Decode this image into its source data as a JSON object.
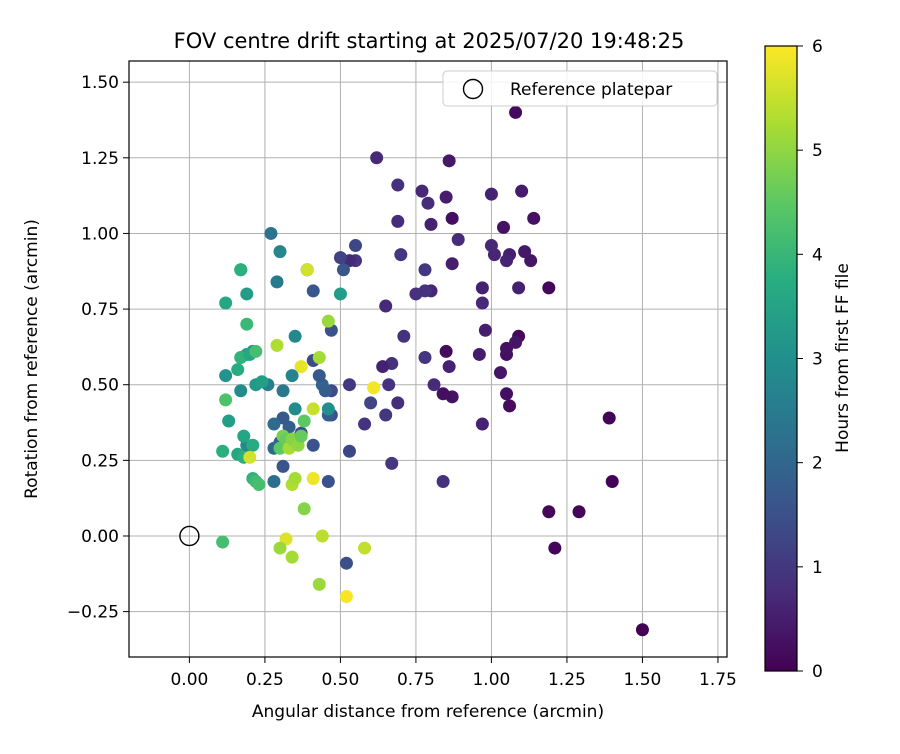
{
  "chart_data": {
    "type": "scatter",
    "title": "FOV centre drift starting at 2025/07/20 19:48:25",
    "xlabel": "Angular distance from reference (arcmin)",
    "ylabel": "Rotation from reference (arcmin)",
    "xlim": [
      -0.2,
      1.78
    ],
    "ylim": [
      -0.4,
      1.57
    ],
    "xticks": [
      "0.00",
      "0.25",
      "0.50",
      "0.75",
      "1.00",
      "1.25",
      "1.50",
      "1.75"
    ],
    "yticks": [
      "−0.25",
      "0.00",
      "0.25",
      "0.50",
      "0.75",
      "1.00",
      "1.25",
      "1.50"
    ],
    "grid": true,
    "colormap": "viridis",
    "colorbar": {
      "label": "Hours from first FF file",
      "range": [
        0,
        6
      ],
      "ticks": [
        "0",
        "1",
        "2",
        "3",
        "4",
        "5",
        "6"
      ]
    },
    "reference": {
      "label": "Reference platepar",
      "x": 0.0,
      "y": 0.0
    },
    "legend_placement": "upper right",
    "points": [
      [
        1.5,
        -0.31,
        0.02
      ],
      [
        1.4,
        0.18,
        0.03
      ],
      [
        1.39,
        0.39,
        0.05
      ],
      [
        1.29,
        0.08,
        0.06
      ],
      [
        1.21,
        -0.04,
        0.08
      ],
      [
        1.19,
        0.08,
        0.1
      ],
      [
        1.19,
        0.82,
        0.12
      ],
      [
        1.09,
        0.66,
        0.14
      ],
      [
        1.08,
        1.4,
        0.15
      ],
      [
        1.06,
        0.43,
        0.2
      ],
      [
        1.05,
        0.47,
        0.25
      ],
      [
        1.05,
        0.6,
        0.25
      ],
      [
        1.05,
        0.62,
        0.3
      ],
      [
        1.08,
        0.64,
        0.35
      ],
      [
        1.14,
        1.05,
        0.28
      ],
      [
        1.13,
        0.91,
        0.35
      ],
      [
        1.11,
        0.94,
        0.4
      ],
      [
        1.1,
        1.14,
        0.45
      ],
      [
        1.09,
        0.82,
        0.55
      ],
      [
        1.06,
        0.93,
        0.5
      ],
      [
        1.05,
        0.91,
        0.6
      ],
      [
        1.04,
        1.02,
        0.3
      ],
      [
        1.03,
        0.54,
        0.35
      ],
      [
        1.01,
        0.93,
        0.65
      ],
      [
        1.0,
        0.96,
        0.7
      ],
      [
        1.0,
        1.13,
        0.6
      ],
      [
        0.98,
        0.68,
        0.5
      ],
      [
        0.97,
        0.37,
        0.6
      ],
      [
        0.96,
        0.6,
        0.45
      ],
      [
        0.97,
        0.82,
        0.55
      ],
      [
        0.97,
        0.77,
        0.7
      ],
      [
        0.89,
        0.98,
        0.75
      ],
      [
        0.86,
        1.24,
        0.4
      ],
      [
        0.87,
        1.05,
        0.25
      ],
      [
        0.87,
        0.9,
        0.5
      ],
      [
        0.87,
        0.46,
        0.3
      ],
      [
        0.85,
        0.61,
        0.2
      ],
      [
        0.84,
        0.47,
        0.25
      ],
      [
        0.85,
        1.12,
        0.5
      ],
      [
        0.86,
        0.56,
        0.6
      ],
      [
        0.84,
        0.18,
        0.85
      ],
      [
        0.81,
        0.5,
        0.75
      ],
      [
        0.8,
        1.03,
        0.55
      ],
      [
        0.8,
        0.81,
        0.65
      ],
      [
        0.77,
        1.14,
        0.7
      ],
      [
        0.78,
        0.81,
        0.9
      ],
      [
        0.78,
        0.88,
        1.0
      ],
      [
        0.79,
        1.1,
        0.8
      ],
      [
        0.78,
        0.59,
        0.95
      ],
      [
        0.75,
        0.8,
        0.85
      ],
      [
        0.71,
        0.66,
        0.9
      ],
      [
        0.7,
        0.93,
        0.95
      ],
      [
        0.69,
        1.04,
        0.75
      ],
      [
        0.69,
        1.16,
        0.85
      ],
      [
        0.69,
        0.44,
        0.8
      ],
      [
        0.67,
        0.24,
        0.95
      ],
      [
        0.67,
        0.57,
        0.85
      ],
      [
        0.66,
        0.5,
        0.9
      ],
      [
        0.65,
        0.76,
        0.7
      ],
      [
        0.64,
        0.56,
        0.6
      ],
      [
        0.65,
        0.4,
        0.95
      ],
      [
        0.62,
        1.25,
        0.7
      ],
      [
        0.58,
        0.37,
        0.9
      ],
      [
        0.55,
        0.96,
        1.3
      ],
      [
        0.55,
        0.91,
        0.95
      ],
      [
        0.53,
        0.91,
        0.7
      ],
      [
        0.53,
        0.5,
        1.0
      ],
      [
        0.53,
        0.28,
        1.3
      ],
      [
        0.52,
        -0.09,
        1.45
      ],
      [
        0.51,
        0.88,
        1.6
      ],
      [
        0.5,
        0.92,
        1.2
      ],
      [
        0.6,
        0.44,
        1.25
      ],
      [
        0.47,
        0.68,
        1.5
      ],
      [
        0.47,
        0.48,
        1.4
      ],
      [
        0.47,
        0.4,
        1.5
      ],
      [
        0.46,
        0.4,
        1.75
      ],
      [
        0.46,
        0.18,
        1.5
      ],
      [
        0.45,
        0.48,
        1.8
      ],
      [
        0.44,
        0.5,
        1.9
      ],
      [
        0.43,
        0.53,
        1.7
      ],
      [
        0.41,
        0.58,
        1.4
      ],
      [
        0.41,
        0.3,
        1.55
      ],
      [
        0.41,
        0.81,
        1.65
      ],
      [
        0.39,
        0.88,
        1.5
      ],
      [
        0.37,
        0.34,
        1.5
      ],
      [
        0.35,
        0.32,
        1.6
      ],
      [
        0.33,
        0.36,
        1.8
      ],
      [
        0.31,
        0.39,
        1.7
      ],
      [
        0.31,
        0.23,
        1.6
      ],
      [
        0.3,
        0.31,
        1.9
      ],
      [
        0.28,
        0.37,
        2.1
      ],
      [
        0.28,
        0.18,
        2.2
      ],
      [
        0.28,
        0.29,
        2.0
      ],
      [
        0.27,
        1.0,
        2.3
      ],
      [
        0.26,
        0.5,
        2.6
      ],
      [
        0.29,
        0.84,
        2.5
      ],
      [
        0.31,
        0.48,
        2.4
      ],
      [
        0.3,
        0.94,
        2.75
      ],
      [
        0.34,
        0.53,
        2.7
      ],
      [
        0.35,
        0.66,
        2.8
      ],
      [
        0.35,
        0.42,
        2.9
      ],
      [
        0.46,
        0.42,
        2.95
      ],
      [
        0.5,
        0.8,
        3.3
      ],
      [
        0.19,
        0.8,
        3.3
      ],
      [
        0.17,
        0.88,
        3.5
      ],
      [
        0.17,
        0.88,
        3.8
      ],
      [
        0.17,
        0.48,
        2.9
      ],
      [
        0.19,
        0.3,
        2.8
      ],
      [
        0.21,
        0.61,
        3.0
      ],
      [
        0.19,
        0.6,
        3.3
      ],
      [
        0.22,
        0.5,
        3.2
      ],
      [
        0.24,
        0.51,
        3.4
      ],
      [
        0.12,
        0.53,
        3.1
      ],
      [
        0.13,
        0.38,
        3.35
      ],
      [
        0.18,
        0.33,
        3.55
      ],
      [
        0.16,
        0.27,
        3.6
      ],
      [
        0.18,
        0.26,
        3.8
      ],
      [
        0.21,
        0.3,
        3.7
      ],
      [
        0.21,
        0.19,
        3.9
      ],
      [
        0.22,
        0.18,
        4.1
      ],
      [
        0.23,
        0.17,
        4.2
      ],
      [
        0.17,
        0.59,
        3.9
      ],
      [
        0.16,
        0.55,
        3.7
      ],
      [
        0.2,
        0.6,
        3.6
      ],
      [
        0.19,
        0.7,
        4.05
      ],
      [
        0.22,
        0.61,
        4.2
      ],
      [
        0.12,
        0.77,
        3.6
      ],
      [
        0.11,
        0.28,
        3.8
      ],
      [
        0.12,
        0.45,
        4.3
      ],
      [
        0.11,
        -0.02,
        4.2
      ],
      [
        0.2,
        0.26,
        5.6
      ],
      [
        0.29,
        0.63,
        5.3
      ],
      [
        0.3,
        0.29,
        4.5
      ],
      [
        0.31,
        0.33,
        4.8
      ],
      [
        0.32,
        0.32,
        4.6
      ],
      [
        0.32,
        -0.01,
        5.7
      ],
      [
        0.3,
        -0.04,
        5.1
      ],
      [
        0.33,
        0.29,
        5.2
      ],
      [
        0.34,
        0.32,
        4.9
      ],
      [
        0.34,
        -0.07,
        5.2
      ],
      [
        0.34,
        0.17,
        5.3
      ],
      [
        0.35,
        0.19,
        5.2
      ],
      [
        0.36,
        0.3,
        5.0
      ],
      [
        0.37,
        0.33,
        4.6
      ],
      [
        0.37,
        0.56,
        5.8
      ],
      [
        0.38,
        0.38,
        4.5
      ],
      [
        0.38,
        0.09,
        4.9
      ],
      [
        0.39,
        0.88,
        5.6
      ],
      [
        0.41,
        0.42,
        5.5
      ],
      [
        0.41,
        0.19,
        5.85
      ],
      [
        0.43,
        0.59,
        5.2
      ],
      [
        0.43,
        -0.16,
        5.1
      ],
      [
        0.44,
        0.0,
        5.4
      ],
      [
        0.46,
        0.71,
        5.1
      ],
      [
        0.52,
        -0.2,
        5.95
      ],
      [
        0.58,
        -0.04,
        5.45
      ],
      [
        0.61,
        0.49,
        5.9
      ]
    ]
  }
}
